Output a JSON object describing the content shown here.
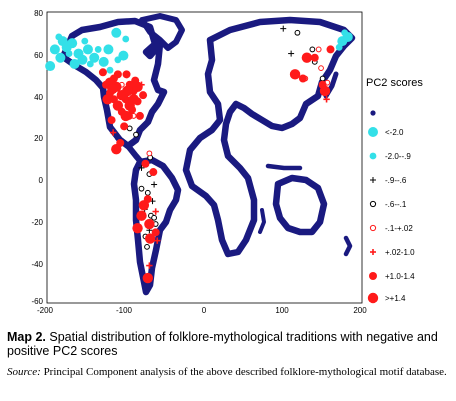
{
  "chart_data": {
    "type": "scatter",
    "x_ticks": [
      "-200",
      "-100",
      "0",
      "100",
      "200"
    ],
    "y_ticks": [
      "80",
      "60",
      "40",
      "20",
      "0",
      "-20",
      "-40",
      "-60"
    ],
    "xlim": [
      -200,
      200
    ],
    "ylim": [
      -60,
      80
    ],
    "legend": {
      "title": "PC2 scores",
      "placement": "right",
      "items": [
        {
          "label": "",
          "marker": "dot-navy"
        },
        {
          "label": "<-2.0",
          "marker": "circle-cyan-large"
        },
        {
          "label": "-2.0--.9",
          "marker": "circle-cyan-small"
        },
        {
          "label": "-.9--.6",
          "marker": "plus-black"
        },
        {
          "label": "-.6--.1",
          "marker": "ring-black"
        },
        {
          "label": "-.1-+.02",
          "marker": "ring-red"
        },
        {
          "label": "+.02-1.0",
          "marker": "plus-red"
        },
        {
          "label": "+1.0-1.4",
          "marker": "circle-red-medium"
        },
        {
          "label": ">+1.4",
          "marker": "circle-red-large"
        }
      ]
    },
    "colors": {
      "navy": "#1a1a80",
      "cyan": "#33e0e8",
      "red": "#ff1a1a",
      "black": "#000000"
    },
    "series": [
      {
        "key": "cyan-large",
        "points": [
          [
            -190,
            62
          ],
          [
            -183,
            58
          ],
          [
            -180,
            66
          ],
          [
            -175,
            63
          ],
          [
            -168,
            65
          ],
          [
            -165,
            55
          ],
          [
            -160,
            60
          ],
          [
            -155,
            57
          ],
          [
            -148,
            62
          ],
          [
            -140,
            58
          ],
          [
            -128,
            56
          ],
          [
            -122,
            62
          ],
          [
            -112,
            70
          ],
          [
            -103,
            59
          ],
          [
            175,
            66
          ],
          [
            182,
            68
          ],
          [
            -196,
            54
          ]
        ]
      },
      {
        "key": "cyan-small",
        "points": [
          [
            -185,
            68
          ],
          [
            -172,
            60
          ],
          [
            -152,
            66
          ],
          [
            -145,
            55
          ],
          [
            -135,
            62
          ],
          [
            -120,
            52
          ],
          [
            -110,
            57
          ],
          [
            -100,
            67
          ],
          [
            171,
            63
          ],
          [
            178,
            70
          ]
        ]
      },
      {
        "key": "plus-black",
        "points": [
          [
            -80,
            5
          ],
          [
            -76,
            -15
          ],
          [
            -70,
            -25
          ],
          [
            -66,
            -11
          ],
          [
            100,
            72
          ],
          [
            110,
            60
          ],
          [
            -64,
            -3
          ]
        ]
      },
      {
        "key": "ring-black",
        "points": [
          [
            -95,
            24
          ],
          [
            -80,
            -5
          ],
          [
            -72,
            -7
          ],
          [
            -68,
            -18
          ],
          [
            -62,
            -22
          ],
          [
            -70,
            2
          ],
          [
            -75,
            -28
          ],
          [
            118,
            70
          ],
          [
            140,
            56
          ],
          [
            150,
            48
          ],
          [
            137,
            62
          ],
          [
            -87,
            21
          ],
          [
            -69,
            10
          ],
          [
            -64,
            -19
          ],
          [
            -73,
            -33
          ]
        ]
      },
      {
        "key": "ring-red",
        "points": [
          [
            -90,
            30
          ],
          [
            -105,
            45
          ],
          [
            -70,
            12
          ],
          [
            145,
            62
          ],
          [
            128,
            48
          ],
          [
            148,
            53
          ],
          [
            156,
            46
          ]
        ]
      },
      {
        "key": "plus-red",
        "points": [
          [
            -80,
            45
          ],
          [
            -60,
            -30
          ],
          [
            -70,
            -42
          ],
          [
            155,
            38
          ],
          [
            -116,
            22
          ],
          [
            -62,
            -16
          ]
        ]
      },
      {
        "key": "red-medium",
        "points": [
          [
            -125,
            45
          ],
          [
            -110,
            50
          ],
          [
            -100,
            38
          ],
          [
            -90,
            42
          ],
          [
            -85,
            37
          ],
          [
            -95,
            45
          ],
          [
            -105,
            32
          ],
          [
            -115,
            38
          ],
          [
            -118,
            28
          ],
          [
            -78,
            40
          ],
          [
            -115,
            48
          ],
          [
            -82,
            30
          ],
          [
            -72,
            -10
          ],
          [
            -62,
            -26
          ],
          [
            -65,
            3
          ],
          [
            -75,
            7
          ],
          [
            -102,
            25
          ],
          [
            -107,
            17
          ],
          [
            -99,
            50
          ],
          [
            -129,
            51
          ],
          [
            -120,
            41
          ],
          [
            -92,
            33
          ],
          [
            -88,
            47
          ],
          [
            -96,
            30
          ],
          [
            140,
            58
          ],
          [
            160,
            62
          ],
          [
            125,
            48
          ],
          [
            150,
            45
          ]
        ]
      },
      {
        "key": "red-large",
        "points": [
          [
            -120,
            46
          ],
          [
            -112,
            44
          ],
          [
            -98,
            42
          ],
          [
            -90,
            38
          ],
          [
            -105,
            40
          ],
          [
            -110,
            35
          ],
          [
            -95,
            35
          ],
          [
            -85,
            44
          ],
          [
            -100,
            30
          ],
          [
            -123,
            38
          ],
          [
            -80,
            -18
          ],
          [
            -72,
            -48
          ],
          [
            130,
            58
          ],
          [
            153,
            42
          ],
          [
            115,
            50
          ],
          [
            -112,
            14
          ],
          [
            -77,
            -13
          ],
          [
            -85,
            -24
          ],
          [
            -70,
            -22
          ],
          [
            -69,
            -29
          ],
          [
            -117,
            43
          ]
        ]
      }
    ]
  },
  "caption": {
    "label": "Map 2.",
    "text": "Spatial distribution of folklore-mythological traditions with negative and positive PC2 scores"
  },
  "source": {
    "label": "Source:",
    "text": "Principal Component analysis of the above described folklore-mythological motif database."
  }
}
